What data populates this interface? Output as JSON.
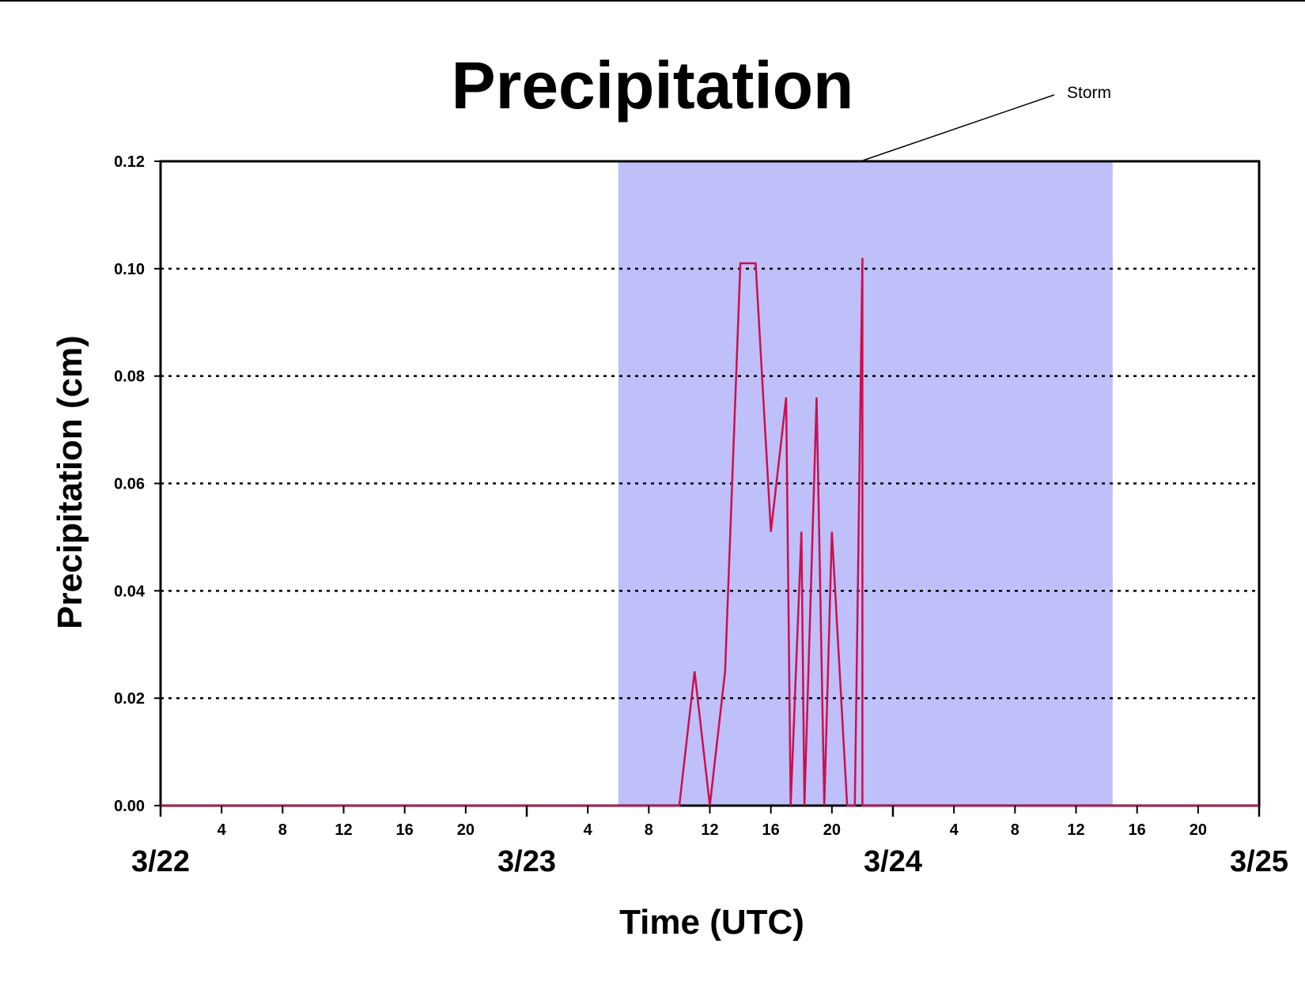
{
  "chart_data": {
    "type": "line",
    "title": "Precipitation",
    "xlabel": "Time (UTC)",
    "ylabel": "Precipitation (cm)",
    "x_unit": "hour",
    "xlim": [
      "3/22 00:00",
      "3/25 00:00"
    ],
    "ylim": [
      0,
      0.12
    ],
    "y_ticks": [
      "0.00",
      "0.02",
      "0.04",
      "0.06",
      "0.08",
      "0.10",
      "0.12"
    ],
    "y_tick_values": [
      0,
      0.02,
      0.04,
      0.06,
      0.08,
      0.1,
      0.12
    ],
    "day_labels": [
      {
        "label": "3/22",
        "hour": 0
      },
      {
        "label": "3/23",
        "hour": 24
      },
      {
        "label": "3/24",
        "hour": 48
      },
      {
        "label": "3/25",
        "hour": 72
      }
    ],
    "hour_labels": [
      {
        "label": "4",
        "hour": 4
      },
      {
        "label": "8",
        "hour": 8
      },
      {
        "label": "12",
        "hour": 12
      },
      {
        "label": "16",
        "hour": 16
      },
      {
        "label": "20",
        "hour": 20
      },
      {
        "label": "4",
        "hour": 28
      },
      {
        "label": "8",
        "hour": 32
      },
      {
        "label": "12",
        "hour": 36
      },
      {
        "label": "16",
        "hour": 40
      },
      {
        "label": "20",
        "hour": 44
      },
      {
        "label": "4",
        "hour": 52
      },
      {
        "label": "8",
        "hour": 56
      },
      {
        "label": "12",
        "hour": 60
      },
      {
        "label": "16",
        "hour": 64
      },
      {
        "label": "20",
        "hour": 68
      }
    ],
    "grid": {
      "horizontal": true,
      "style": "dotted",
      "values": [
        0.02,
        0.04,
        0.06,
        0.08,
        0.1
      ]
    },
    "shaded_region": {
      "label": "Storm",
      "x_start_hour": 30,
      "x_end_hour": 62.4,
      "color": "#bfbffa"
    },
    "annotation": {
      "text": "Storm"
    },
    "series": [
      {
        "color": "#cc0f4e",
        "points": [
          [
            0,
            0
          ],
          [
            34,
            0
          ],
          [
            35,
            0.025
          ],
          [
            36,
            0
          ],
          [
            37,
            0.025
          ],
          [
            38,
            0.101
          ],
          [
            39,
            0.101
          ],
          [
            40,
            0.051
          ],
          [
            41,
            0.076
          ],
          [
            41.3,
            0
          ],
          [
            42,
            0.051
          ],
          [
            42.2,
            0
          ],
          [
            43,
            0.076
          ],
          [
            43.5,
            0
          ],
          [
            44,
            0.051
          ],
          [
            45,
            0
          ],
          [
            45.5,
            0
          ],
          [
            46,
            0.102
          ],
          [
            46,
            0
          ],
          [
            72,
            0
          ]
        ]
      }
    ],
    "baseline_color": "#cc0f4e",
    "background": "#ffffff"
  }
}
